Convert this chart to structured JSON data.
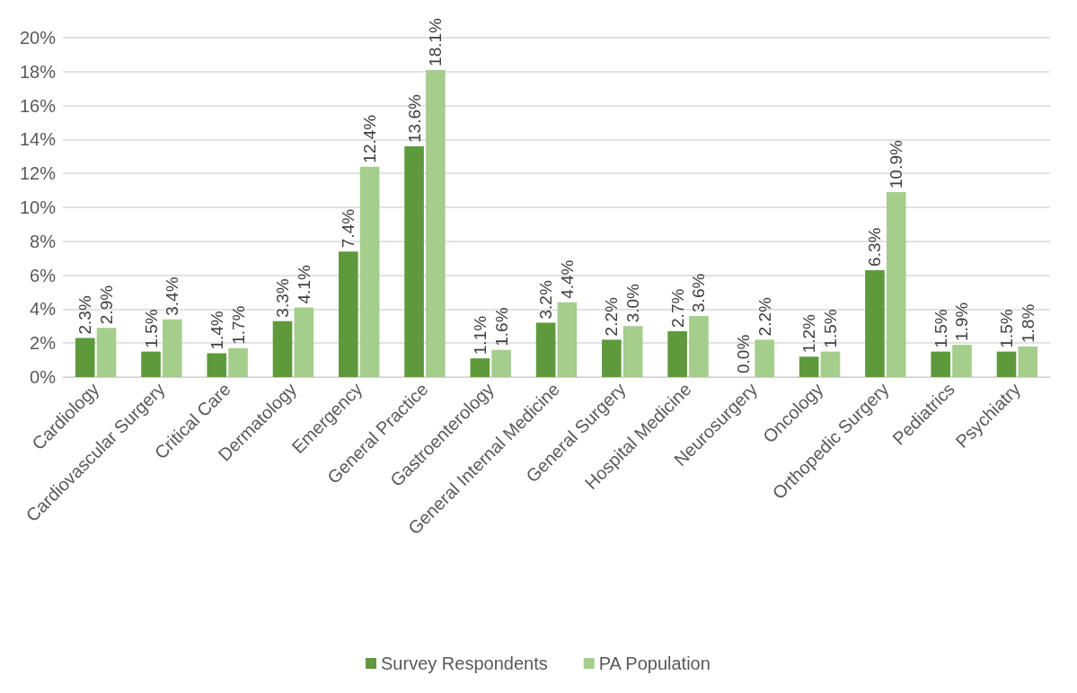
{
  "chart_data": {
    "type": "bar",
    "categories": [
      "Cardiology",
      "Cardiovascular Surgery",
      "Critical Care",
      "Dermatology",
      "Emergency",
      "General Practice",
      "Gastroenterology",
      "General Internal Medicine",
      "General Surgery",
      "Hospital Medicine",
      "Neurosurgery",
      "Oncology",
      "Orthopedic Surgery",
      "Pediatrics",
      "Psychiatry"
    ],
    "series": [
      {
        "name": "Survey Respondents",
        "color": "#5e9a3c",
        "values": [
          2.3,
          1.5,
          1.4,
          3.3,
          7.4,
          13.6,
          1.1,
          3.2,
          2.2,
          2.7,
          0.0,
          1.2,
          6.3,
          1.5,
          1.5
        ],
        "value_labels": [
          "2.3%",
          "1.5%",
          "1.4%",
          "3.3%",
          "7.4%",
          "13.6%",
          "1.1%",
          "3.2%",
          "2.2%",
          "2.7%",
          "0.0%",
          "1.2%",
          "6.3%",
          "1.5%",
          "1.5%"
        ]
      },
      {
        "name": "PA Population",
        "color": "#a5cd8c",
        "values": [
          2.9,
          3.4,
          1.7,
          4.1,
          12.4,
          18.1,
          1.6,
          4.4,
          3.0,
          3.6,
          2.2,
          1.5,
          10.9,
          1.9,
          1.8
        ],
        "value_labels": [
          "2.9%",
          "3.4%",
          "1.7%",
          "4.1%",
          "12.4%",
          "18.1%",
          "1.6%",
          "4.4%",
          "3.0%",
          "3.6%",
          "2.2%",
          "1.5%",
          "10.9%",
          "1.9%",
          "1.8%"
        ]
      }
    ],
    "ylim": [
      0,
      20
    ],
    "yticks": [
      {
        "value": 0,
        "label": "0%"
      },
      {
        "value": 2,
        "label": "2%"
      },
      {
        "value": 4,
        "label": "4%"
      },
      {
        "value": 6,
        "label": "6%"
      },
      {
        "value": 8,
        "label": "8%"
      },
      {
        "value": 10,
        "label": "10%"
      },
      {
        "value": 12,
        "label": "12%"
      },
      {
        "value": 14,
        "label": "14%"
      },
      {
        "value": 16,
        "label": "16%"
      },
      {
        "value": 18,
        "label": "18%"
      },
      {
        "value": 20,
        "label": "20%"
      }
    ],
    "grid": "y",
    "legend": "bottom"
  }
}
